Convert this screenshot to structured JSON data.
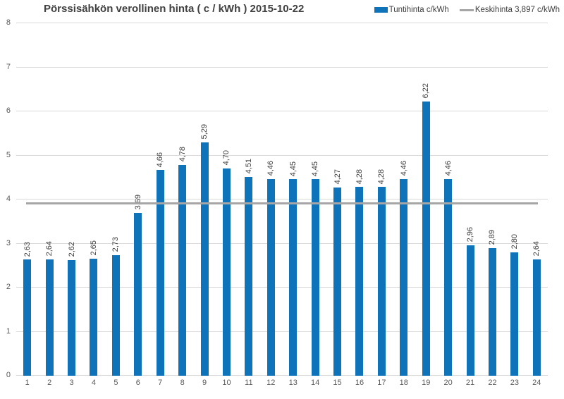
{
  "chart_data": {
    "type": "bar",
    "title": "Pörssisähkön verollinen hinta ( c / kWh ) 2015-10-22",
    "categories": [
      "1",
      "2",
      "3",
      "4",
      "5",
      "6",
      "7",
      "8",
      "9",
      "10",
      "11",
      "12",
      "13",
      "14",
      "15",
      "16",
      "17",
      "18",
      "19",
      "20",
      "21",
      "22",
      "23",
      "24"
    ],
    "series": [
      {
        "name": "Tuntihinta c/kWh",
        "values": [
          2.63,
          2.64,
          2.62,
          2.65,
          2.73,
          3.69,
          4.66,
          4.78,
          5.29,
          4.7,
          4.51,
          4.46,
          4.45,
          4.45,
          4.27,
          4.28,
          4.28,
          4.46,
          6.22,
          4.46,
          2.96,
          2.89,
          2.8,
          2.64
        ],
        "labels": [
          "2,63",
          "2,64",
          "2,62",
          "2,65",
          "2,73",
          "3,69",
          "4,66",
          "4,78",
          "5,29",
          "4,70",
          "4,51",
          "4,46",
          "4,45",
          "4,45",
          "4,27",
          "4,28",
          "4,28",
          "4,46",
          "6,22",
          "4,46",
          "2,96",
          "2,89",
          "2,80",
          "2,64"
        ]
      }
    ],
    "average_line": {
      "label": "Keskihinta 3,897 c/kWh",
      "value": 3.897
    },
    "xlabel": "",
    "ylabel": "",
    "ylim": [
      0,
      8
    ],
    "yticks": [
      0,
      1,
      2,
      3,
      4,
      5,
      6,
      7,
      8
    ],
    "grid": true,
    "legend_position": "top-right",
    "data_label_rotation": "vertical-bottom-up",
    "decimal_separator": ","
  },
  "colors": {
    "bar": "#0f73ba",
    "average_line": "#a6a6a6",
    "gridline": "#d9d9d9",
    "title_text": "#404040",
    "axis_text": "#595959",
    "data_label_text": "#404040",
    "background": "#ffffff"
  }
}
